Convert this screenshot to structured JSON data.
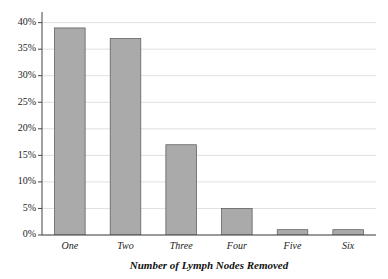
{
  "chart_data": {
    "type": "bar",
    "xlabel": "Number of Lymph Nodes Removed",
    "categories": [
      "One",
      "Two",
      "Three",
      "Four",
      "Five",
      "Six"
    ],
    "values": [
      39,
      37,
      17,
      5,
      1,
      1
    ],
    "color": "#aaaaaa",
    "ylim": [
      0,
      42
    ],
    "yticks": [
      {
        "value": 0,
        "label": "0%"
      },
      {
        "value": 5,
        "label": "5%"
      },
      {
        "value": 10,
        "label": "10%"
      },
      {
        "value": 15,
        "label": "15%"
      },
      {
        "value": 20,
        "label": "20%"
      },
      {
        "value": 25,
        "label": "25%"
      },
      {
        "value": 30,
        "label": "30%"
      },
      {
        "value": 35,
        "label": "35%"
      },
      {
        "value": 40,
        "label": "40%"
      }
    ],
    "grid": true
  }
}
